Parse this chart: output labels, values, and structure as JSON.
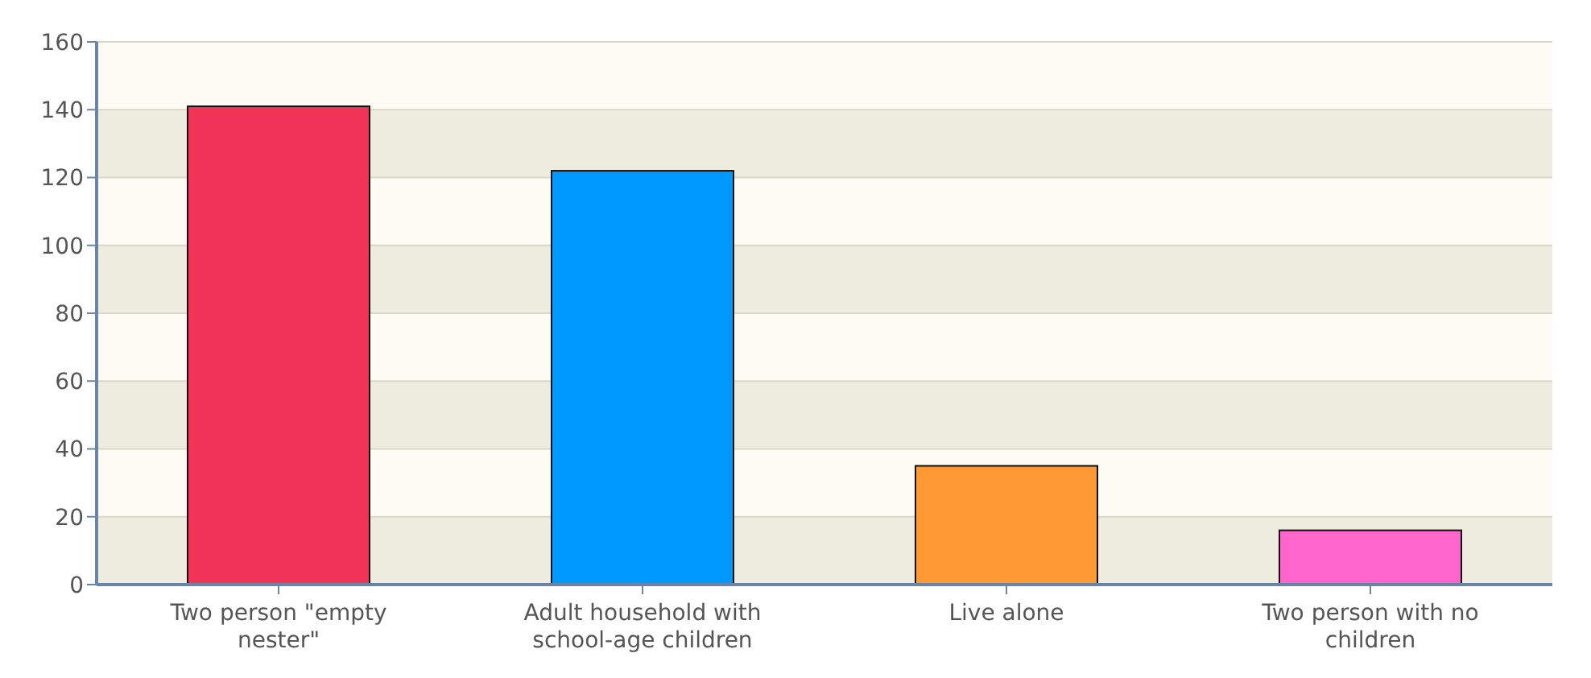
{
  "chart_data": {
    "type": "bar",
    "categories": [
      "Two person \"empty nester\"",
      "Adult household with school-age children",
      "Live alone",
      "Two person with no children"
    ],
    "values": [
      141,
      122,
      35,
      16
    ],
    "colors": [
      "#f03458",
      "#0099ff",
      "#ff9933",
      "#ff66cc"
    ],
    "ylim": [
      0,
      160
    ],
    "yticks": [
      0,
      20,
      40,
      60,
      80,
      100,
      120,
      140,
      160
    ],
    "grid": "y"
  }
}
